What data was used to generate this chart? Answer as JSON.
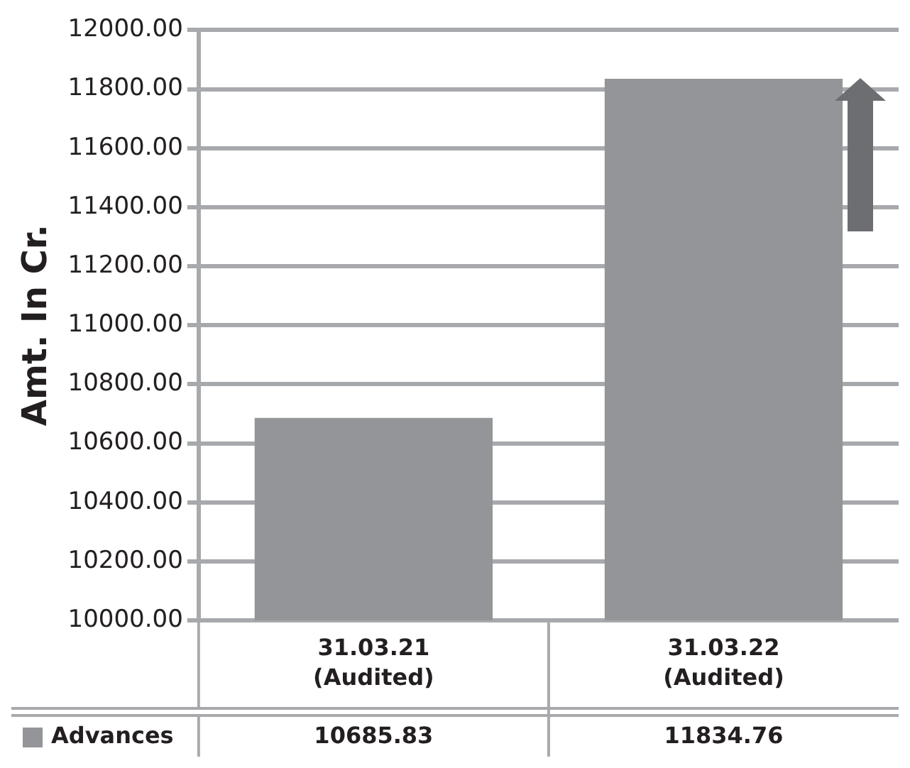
{
  "chart_data": {
    "type": "bar",
    "ylabel": "Amt. In Cr.",
    "categories": [
      "31.03.21 (Audited)",
      "31.03.22 (Audited)"
    ],
    "series": [
      {
        "name": "Advances",
        "color": "#939598",
        "values": [
          10685.83,
          11834.76
        ]
      }
    ],
    "ylim": [
      10000,
      12000
    ],
    "yticks": [
      {
        "value": 10000,
        "label": "10000.00"
      },
      {
        "value": 10200,
        "label": "10200.00"
      },
      {
        "value": 10400,
        "label": "10400.00"
      },
      {
        "value": 10600,
        "label": "10600.00"
      },
      {
        "value": 10800,
        "label": "10800.00"
      },
      {
        "value": 11000,
        "label": "11000.00"
      },
      {
        "value": 11200,
        "label": "11200.00"
      },
      {
        "value": 11400,
        "label": "11400.00"
      },
      {
        "value": 11600,
        "label": "11600.00"
      },
      {
        "value": 11800,
        "label": "11800.00"
      },
      {
        "value": 12000,
        "label": "12000.00"
      }
    ],
    "grid": "y",
    "legend": "bottom",
    "data_labels": true
  }
}
